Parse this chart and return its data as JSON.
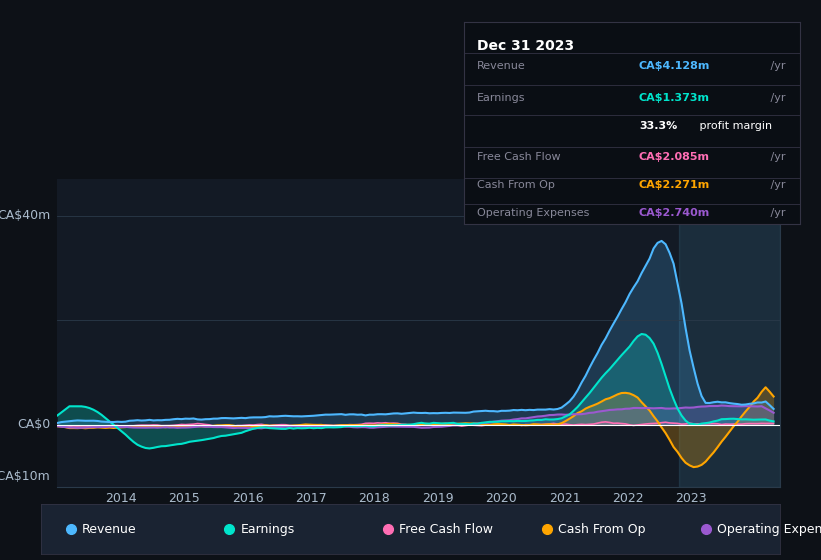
{
  "bg_color": "#0d1117",
  "plot_bg_color": "#131a25",
  "grid_color": "#2a3a4a",
  "zero_line_color": "#ffffff",
  "ylabel_ca40": "CA$40m",
  "ylabel_ca0": "CA$0",
  "ylabel_ca_neg10": "-CA$10m",
  "x_labels": [
    "2014",
    "2015",
    "2016",
    "2017",
    "2018",
    "2019",
    "2020",
    "2021",
    "2022",
    "2023"
  ],
  "series_colors": {
    "Revenue": "#4db8ff",
    "Earnings": "#00e5cc",
    "FreeCashFlow": "#ff6eb4",
    "CashFromOp": "#ffa500",
    "OperatingExpenses": "#9b59d0"
  },
  "tooltip_bg": "#0a0e14",
  "tooltip_title": "Dec 31 2023",
  "tooltip_rows": [
    {
      "label": "Revenue",
      "value": "CA$4.128m",
      "color": "#4db8ff"
    },
    {
      "label": "Earnings",
      "value": "CA$1.373m",
      "color": "#00e5cc"
    },
    {
      "label": "",
      "value": "33.3% profit margin",
      "color": "#ffffff"
    },
    {
      "label": "Free Cash Flow",
      "value": "CA$2.085m",
      "color": "#ff6eb4"
    },
    {
      "label": "Cash From Op",
      "value": "CA$2.271m",
      "color": "#ffa500"
    },
    {
      "label": "Operating Expenses",
      "value": "CA$2.740m",
      "color": "#9b59d0"
    }
  ],
  "legend_items": [
    {
      "label": "Revenue",
      "color": "#4db8ff"
    },
    {
      "label": "Earnings",
      "color": "#00e5cc"
    },
    {
      "label": "Free Cash Flow",
      "color": "#ff6eb4"
    },
    {
      "label": "Cash From Op",
      "color": "#ffa500"
    },
    {
      "label": "Operating Expenses",
      "color": "#9b59d0"
    }
  ]
}
